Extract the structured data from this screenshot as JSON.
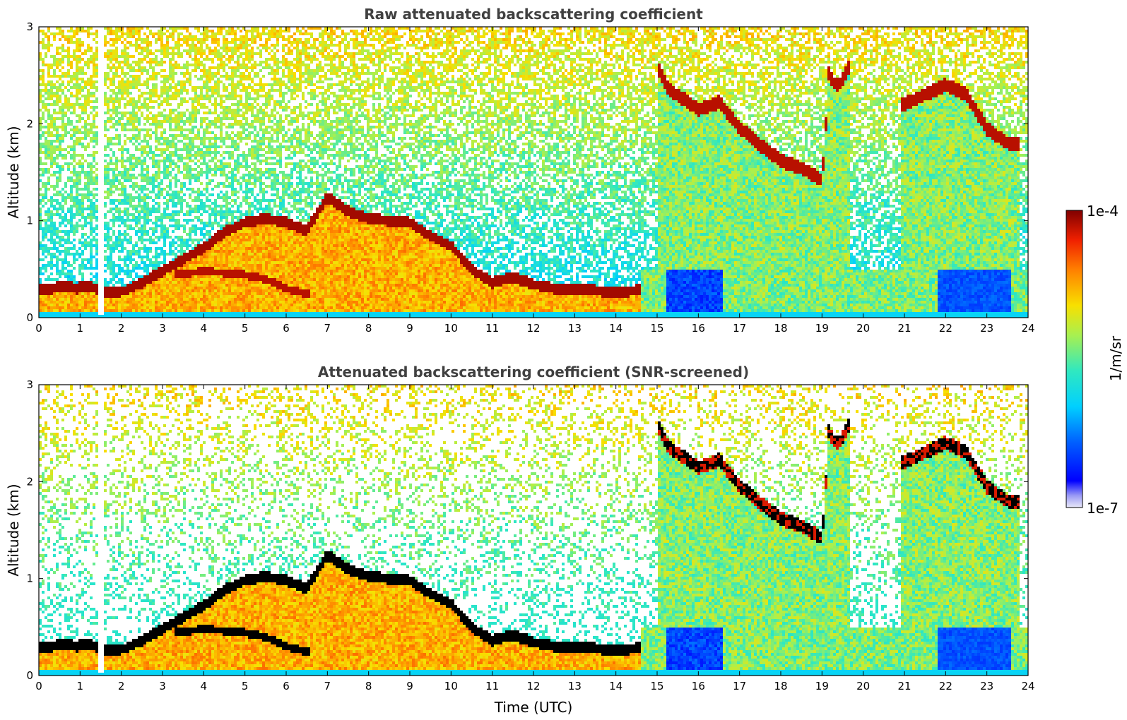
{
  "chart_data": [
    {
      "type": "heatmap",
      "title": "Raw attenuated backscattering coefficient",
      "xlabel": "",
      "ylabel": "Altitude (km)",
      "xlim": [
        0,
        24
      ],
      "ylim": [
        0,
        3
      ],
      "x_ticks": [
        "0",
        "1",
        "2",
        "3",
        "4",
        "5",
        "6",
        "7",
        "8",
        "9",
        "10",
        "11",
        "12",
        "13",
        "14",
        "15",
        "16",
        "17",
        "18",
        "19",
        "20",
        "21",
        "22",
        "23",
        "24"
      ],
      "y_ticks": [
        "0",
        "1",
        "2",
        "3"
      ],
      "grid": false,
      "screened": false
    },
    {
      "type": "heatmap",
      "title": "Attenuated backscattering coefficient (SNR-screened)",
      "xlabel": "Time (UTC)",
      "ylabel": "Altitude (km)",
      "xlim": [
        0,
        24
      ],
      "ylim": [
        0,
        3
      ],
      "x_ticks": [
        "0",
        "1",
        "2",
        "3",
        "4",
        "5",
        "6",
        "7",
        "8",
        "9",
        "10",
        "11",
        "12",
        "13",
        "14",
        "15",
        "16",
        "17",
        "18",
        "19",
        "20",
        "21",
        "22",
        "23",
        "24"
      ],
      "y_ticks": [
        "0",
        "1",
        "2",
        "3"
      ],
      "grid": false,
      "screened": true
    }
  ],
  "colorbar": {
    "label": "1/m/sr",
    "max_label": "1e-4",
    "min_label": "1e-7",
    "colormap": "jet",
    "scale": "log",
    "range": [
      1e-07,
      0.0001
    ]
  },
  "features": {
    "cloud_base_profile": [
      [
        0.0,
        0.28
      ],
      [
        0.3,
        0.3
      ],
      [
        0.6,
        0.33
      ],
      [
        0.9,
        0.3
      ],
      [
        1.2,
        0.33
      ],
      [
        1.5,
        0.28
      ],
      [
        1.8,
        0.26
      ],
      [
        2.1,
        0.28
      ],
      [
        2.5,
        0.36
      ],
      [
        3.0,
        0.48
      ],
      [
        3.5,
        0.6
      ],
      [
        4.0,
        0.72
      ],
      [
        4.5,
        0.88
      ],
      [
        5.0,
        0.98
      ],
      [
        5.5,
        1.02
      ],
      [
        6.0,
        0.98
      ],
      [
        6.5,
        0.9
      ],
      [
        7.0,
        1.24
      ],
      [
        7.5,
        1.1
      ],
      [
        8.0,
        1.02
      ],
      [
        8.5,
        1.0
      ],
      [
        9.0,
        0.98
      ],
      [
        9.5,
        0.84
      ],
      [
        10.0,
        0.74
      ],
      [
        10.5,
        0.5
      ],
      [
        11.0,
        0.36
      ],
      [
        11.5,
        0.42
      ],
      [
        12.0,
        0.34
      ],
      [
        12.5,
        0.3
      ],
      [
        13.0,
        0.3
      ],
      [
        13.5,
        0.28
      ],
      [
        14.0,
        0.26
      ],
      [
        14.5,
        0.28
      ]
    ],
    "lower_layer": [
      [
        3.5,
        0.45
      ],
      [
        4.0,
        0.48
      ],
      [
        4.5,
        0.46
      ],
      [
        5.0,
        0.44
      ],
      [
        5.5,
        0.4
      ],
      [
        6.0,
        0.3
      ],
      [
        6.5,
        0.24
      ]
    ],
    "elevated_layer": [
      [
        15.0,
        2.6
      ],
      [
        15.3,
        2.34
      ],
      [
        15.7,
        2.24
      ],
      [
        16.0,
        2.14
      ],
      [
        16.5,
        2.22
      ],
      [
        17.0,
        1.96
      ],
      [
        17.5,
        1.78
      ],
      [
        18.0,
        1.62
      ],
      [
        18.5,
        1.54
      ],
      [
        19.0,
        1.42
      ],
      [
        19.2,
        2.6
      ],
      [
        19.5,
        2.5
      ],
      [
        21.0,
        2.2
      ],
      [
        21.5,
        2.3
      ],
      [
        22.0,
        2.4
      ],
      [
        22.5,
        2.3
      ],
      [
        23.0,
        1.95
      ],
      [
        23.5,
        1.8
      ]
    ]
  }
}
